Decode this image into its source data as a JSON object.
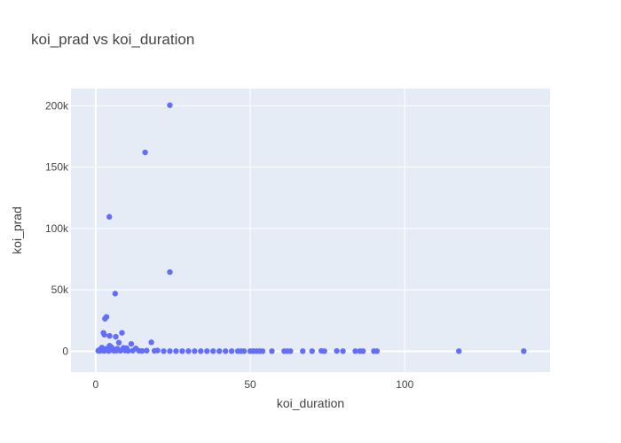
{
  "chart_data": {
    "type": "scatter",
    "title": "koi_prad vs koi_duration",
    "xlabel": "koi_duration",
    "ylabel": "koi_prad",
    "xlim": [
      -8,
      147
    ],
    "ylim": [
      -17000,
      214000
    ],
    "xticks": [
      0,
      50,
      100
    ],
    "xtick_labels": [
      "0",
      "50",
      "100"
    ],
    "yticks": [
      0,
      50000,
      100000,
      150000,
      200000
    ],
    "ytick_labels": [
      "0",
      "50k",
      "100k",
      "150k",
      "200k"
    ],
    "grid": true,
    "colors": {
      "plot_bg": "#e5ecf6",
      "marker": "#636efa",
      "grid": "#ffffff"
    },
    "series": [
      {
        "points": [
          [
            24.0,
            200500
          ],
          [
            16.0,
            162000
          ],
          [
            4.4,
            109500
          ],
          [
            24.0,
            64500
          ],
          [
            6.3,
            47000
          ],
          [
            3.5,
            28000
          ],
          [
            3.0,
            26500
          ],
          [
            2.5,
            15000
          ],
          [
            2.8,
            13500
          ],
          [
            4.5,
            12500
          ],
          [
            8.5,
            15000
          ],
          [
            6.5,
            11800
          ],
          [
            7.5,
            7000
          ],
          [
            11.5,
            6000
          ],
          [
            18.0,
            7300
          ],
          [
            4.5,
            4500
          ],
          [
            5.0,
            3500
          ],
          [
            9.0,
            2800
          ],
          [
            10.0,
            2500
          ],
          [
            13.0,
            2300
          ],
          [
            2.0,
            2500
          ],
          [
            1.5,
            1500
          ],
          [
            2.0,
            3000
          ],
          [
            3.5,
            2000
          ],
          [
            5.5,
            2000
          ],
          [
            7.0,
            2100
          ],
          [
            0.8,
            400
          ],
          [
            1.0,
            800
          ],
          [
            1.2,
            200
          ],
          [
            1.6,
            600
          ],
          [
            2.2,
            900
          ],
          [
            2.6,
            300
          ],
          [
            3.0,
            500
          ],
          [
            3.8,
            700
          ],
          [
            4.2,
            200
          ],
          [
            5.0,
            900
          ],
          [
            6.0,
            300
          ],
          [
            6.8,
            600
          ],
          [
            8.0,
            400
          ],
          [
            9.5,
            600
          ],
          [
            10.5,
            300
          ],
          [
            12.0,
            500
          ],
          [
            14.0,
            400
          ],
          [
            15.0,
            200
          ],
          [
            16.5,
            500
          ],
          [
            19.0,
            300
          ],
          [
            20.0,
            600
          ],
          [
            22,
            100
          ],
          [
            24,
            100
          ],
          [
            26,
            100
          ],
          [
            28,
            100
          ],
          [
            30,
            100
          ],
          [
            32,
            100
          ],
          [
            34,
            100
          ],
          [
            36,
            100
          ],
          [
            38,
            100
          ],
          [
            40,
            100
          ],
          [
            42,
            100
          ],
          [
            44,
            100
          ],
          [
            46,
            100
          ],
          [
            47,
            100
          ],
          [
            48,
            100
          ],
          [
            50,
            100
          ],
          [
            51,
            100
          ],
          [
            52,
            100
          ],
          [
            53,
            100
          ],
          [
            54,
            100
          ],
          [
            57,
            100
          ],
          [
            61,
            100
          ],
          [
            62,
            100
          ],
          [
            63,
            100
          ],
          [
            67,
            100
          ],
          [
            70,
            100
          ],
          [
            73,
            300
          ],
          [
            74,
            100
          ],
          [
            78,
            200
          ],
          [
            80,
            100
          ],
          [
            84,
            100
          ],
          [
            85.5,
            100
          ],
          [
            86.5,
            100
          ],
          [
            90,
            100
          ],
          [
            91,
            100
          ],
          [
            117.5,
            100
          ],
          [
            138.5,
            100
          ]
        ]
      }
    ]
  }
}
